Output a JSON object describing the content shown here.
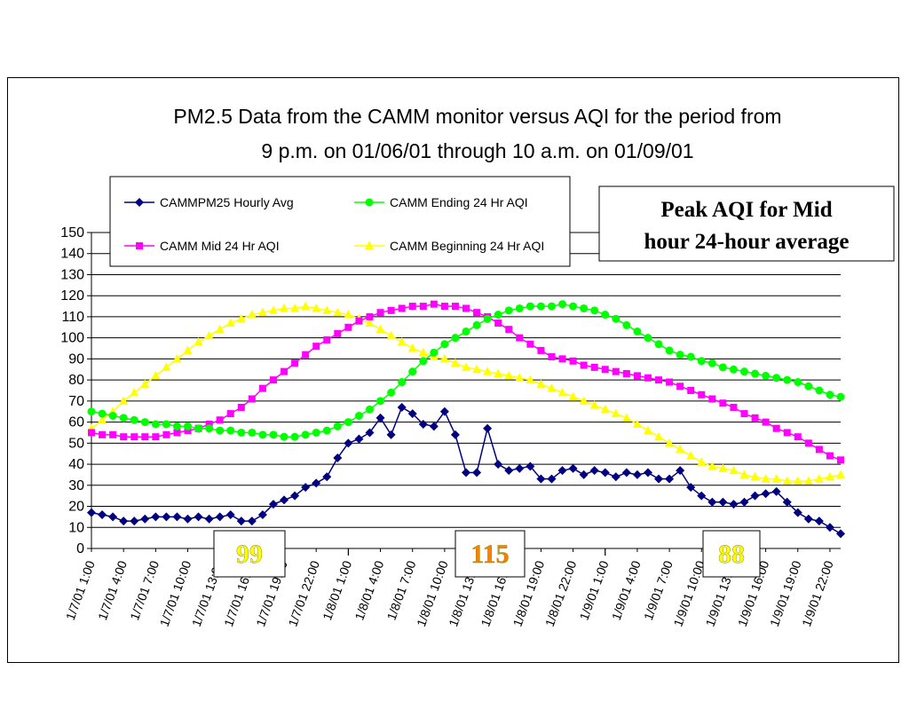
{
  "chart_data": {
    "type": "line",
    "title": [
      "PM2.5 Data from the CAMM monitor versus AQI for the period from",
      "9 p.m. on 01/06/01 through 10 a.m. on 01/09/01"
    ],
    "ylim": [
      0,
      150
    ],
    "yticks": [
      0,
      10,
      20,
      30,
      40,
      50,
      60,
      70,
      80,
      90,
      100,
      110,
      120,
      130,
      140,
      150
    ],
    "grid": "horizontal",
    "legend_position": "top-left",
    "x_tick_labels": [
      "1/7/01 1:00",
      "1/7/01 4:00",
      "1/7/01 7:00",
      "1/7/01 10:00",
      "1/7/01 13:00",
      "1/7/01 16:00",
      "1/7/01 19:00",
      "1/7/01 22:00",
      "1/8/01 1:00",
      "1/8/01 4:00",
      "1/8/01 7:00",
      "1/8/01 10:00",
      "1/8/01 13:00",
      "1/8/01 16:00",
      "1/8/01 19:00",
      "1/8/01 22:00",
      "1/9/01 1:00",
      "1/9/01 4:00",
      "1/9/01 7:00",
      "1/9/01 10:00",
      "1/9/01 13:00",
      "1/9/01 16:00",
      "1/9/01 19:00",
      "1/9/01 22:00"
    ],
    "series": [
      {
        "name": "CAMMPM25 Hourly Avg",
        "color": "#000080",
        "marker": "diamond",
        "values": [
          17,
          16,
          15,
          13,
          13,
          14,
          15,
          15,
          15,
          14,
          15,
          14,
          15,
          16,
          13,
          13,
          16,
          21,
          23,
          25,
          29,
          31,
          34,
          43,
          50,
          52,
          55,
          62,
          54,
          67,
          64,
          59,
          58,
          65,
          54,
          36,
          36,
          57,
          40,
          37,
          38,
          39,
          33,
          33,
          37,
          38,
          35,
          37,
          36,
          34,
          36,
          35,
          36,
          33,
          33,
          37,
          29,
          25,
          22,
          22,
          21,
          22,
          25,
          26,
          27,
          22,
          17,
          14,
          13,
          10,
          7
        ]
      },
      {
        "name": "CAMM Ending 24 Hr AQI",
        "color": "#00ff00",
        "marker": "circle",
        "values": [
          65,
          64,
          63,
          62,
          61,
          60,
          59,
          59,
          58,
          58,
          57,
          57,
          56,
          56,
          55,
          55,
          54,
          54,
          53,
          53,
          54,
          55,
          56,
          58,
          60,
          63,
          66,
          70,
          74,
          79,
          84,
          89,
          93,
          97,
          100,
          103,
          106,
          109,
          111,
          113,
          114,
          115,
          115,
          115,
          116,
          115,
          114,
          113,
          111,
          109,
          106,
          103,
          100,
          97,
          94,
          92,
          91,
          89,
          88,
          86,
          85,
          84,
          83,
          82,
          81,
          80,
          79,
          77,
          75,
          73,
          72
        ]
      },
      {
        "name": "CAMM Mid 24 Hr AQI",
        "color": "#ff00ff",
        "marker": "square",
        "values": [
          55,
          54,
          54,
          53,
          53,
          53,
          53,
          54,
          55,
          56,
          57,
          59,
          61,
          64,
          67,
          71,
          76,
          80,
          84,
          88,
          92,
          96,
          99,
          102,
          105,
          108,
          110,
          112,
          113,
          114,
          115,
          115,
          116,
          115,
          115,
          114,
          112,
          110,
          107,
          104,
          100,
          97,
          94,
          91,
          90,
          89,
          87,
          86,
          85,
          84,
          83,
          82,
          81,
          80,
          79,
          77,
          75,
          73,
          71,
          69,
          67,
          64,
          62,
          60,
          57,
          55,
          53,
          50,
          47,
          44,
          42
        ]
      },
      {
        "name": "CAMM Beginning 24 Hr AQI",
        "color": "#ffff00",
        "marker": "triangle",
        "values": [
          57,
          61,
          65,
          70,
          74,
          78,
          82,
          86,
          90,
          94,
          98,
          101,
          104,
          107,
          109,
          111,
          112,
          113,
          114,
          114,
          115,
          114,
          113,
          112,
          111,
          109,
          107,
          104,
          101,
          98,
          95,
          93,
          91,
          90,
          88,
          86,
          85,
          84,
          83,
          82,
          81,
          80,
          78,
          76,
          74,
          72,
          70,
          68,
          66,
          64,
          62,
          59,
          56,
          53,
          50,
          47,
          44,
          41,
          39,
          38,
          37,
          35,
          34,
          33,
          33,
          32,
          32,
          32,
          33,
          34,
          35
        ]
      }
    ]
  },
  "legend": {
    "items": [
      {
        "label": "CAMMPM25 Hourly Avg",
        "color": "#000080",
        "marker": "diamond"
      },
      {
        "label": "CAMM Ending 24 Hr AQI",
        "color": "#00ff00",
        "marker": "circle"
      },
      {
        "label": "CAMM Mid 24 Hr AQI",
        "color": "#ff00ff",
        "marker": "square"
      },
      {
        "label": "CAMM Beginning 24 Hr AQI",
        "color": "#ffff00",
        "marker": "triangle"
      }
    ]
  },
  "peak_note": {
    "line1": "Peak AQI for  Mid",
    "line2": "hour 24-hour average"
  },
  "peak_boxes": [
    {
      "label": "99",
      "color": "#ffff00"
    },
    {
      "label": "115",
      "color": "#ff8000"
    },
    {
      "label": "88",
      "color": "#ffff00"
    }
  ]
}
